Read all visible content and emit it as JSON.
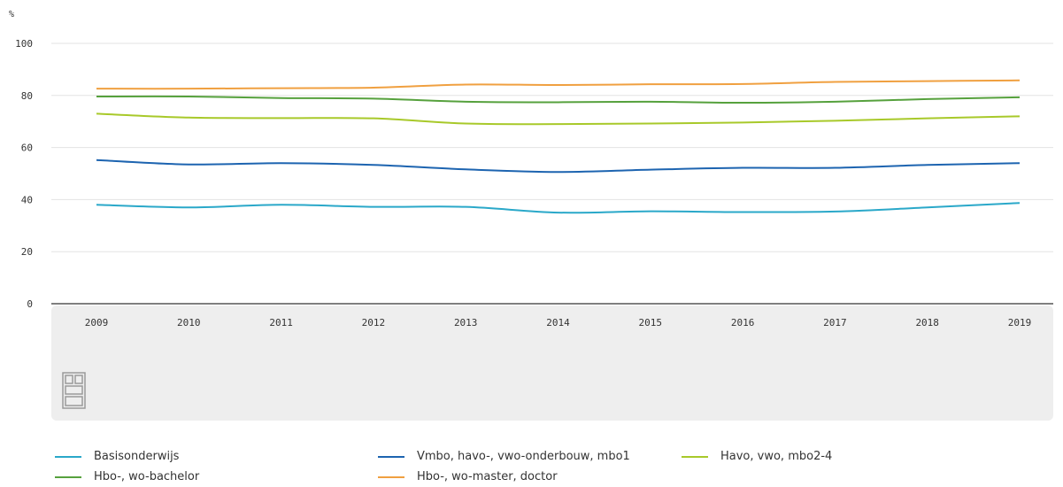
{
  "chart_data": {
    "type": "line",
    "unit_label": "%",
    "categories": [
      "2009",
      "2010",
      "2011",
      "2012",
      "2013",
      "2014",
      "2015",
      "2016",
      "2017",
      "2018",
      "2019"
    ],
    "ylim": [
      0,
      100
    ],
    "yticks": [
      0,
      20,
      40,
      60,
      80,
      100
    ],
    "grid": true,
    "legend_position": "bottom",
    "series": [
      {
        "name": "Basisonderwijs",
        "color": "#2aa8c9",
        "values": [
          38.0,
          37.0,
          38.0,
          37.2,
          37.2,
          35.0,
          35.5,
          35.2,
          35.4,
          37.0,
          38.7
        ]
      },
      {
        "name": "Vmbo, havo-, vwo-onderbouw, mbo1",
        "color": "#1d64b0",
        "values": [
          55.2,
          53.5,
          54.0,
          53.3,
          51.6,
          50.6,
          51.5,
          52.2,
          52.2,
          53.3,
          54.0
        ]
      },
      {
        "name": "Havo, vwo, mbo2-4",
        "color": "#a8c92a",
        "values": [
          73.0,
          71.5,
          71.3,
          71.2,
          69.2,
          69.0,
          69.2,
          69.6,
          70.3,
          71.2,
          72.0
        ]
      },
      {
        "name": "Hbo-, wo-bachelor",
        "color": "#56a13d",
        "values": [
          79.6,
          79.6,
          79.0,
          78.8,
          77.6,
          77.4,
          77.6,
          77.2,
          77.6,
          78.6,
          79.3
        ]
      },
      {
        "name": "Hbo-, wo-master, doctor",
        "color": "#f0a040",
        "values": [
          82.6,
          82.6,
          82.8,
          83.0,
          84.2,
          84.0,
          84.3,
          84.4,
          85.2,
          85.5,
          85.8
        ]
      }
    ]
  },
  "logo": {
    "text": "cbs"
  }
}
